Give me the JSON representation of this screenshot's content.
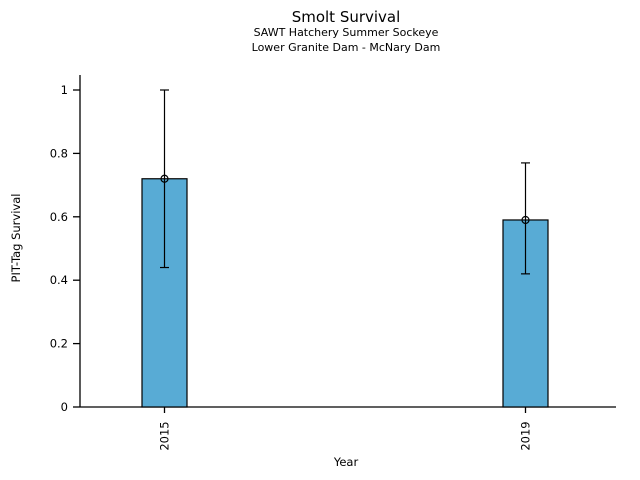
{
  "chart_data": {
    "type": "bar",
    "title": "Smolt Survival",
    "subtitle_line1": "SAWT Hatchery Summer Sockeye",
    "subtitle_line2": "Lower Granite Dam - McNary Dam",
    "xlabel": "Year",
    "ylabel": "PIT-Tag Survival",
    "categories": [
      "2015",
      "2019"
    ],
    "values": [
      0.72,
      0.59
    ],
    "error_low": [
      0.44,
      0.42
    ],
    "error_high": [
      1.0,
      0.77
    ],
    "yticks": [
      0,
      0.2,
      0.4,
      0.6,
      0.8,
      1
    ],
    "ytick_labels": [
      "0",
      "0.2",
      "0.4",
      "0.6",
      "0.8",
      "1"
    ],
    "ylim": [
      0,
      1.05
    ],
    "xtick_rotation_deg": 90,
    "bar_color": "#58ABD5",
    "bar_edge_color": "#000000",
    "error_bar_color": "#000000",
    "marker": "open-circle",
    "grid": false,
    "legend": "none",
    "background_color": "#FFFFFF"
  }
}
